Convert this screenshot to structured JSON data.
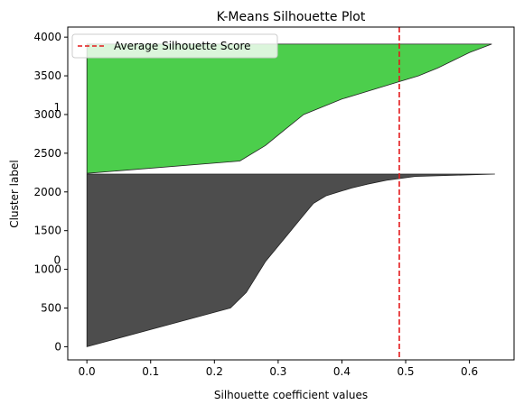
{
  "chart_data": {
    "type": "area",
    "title": "K-Means Silhouette Plot",
    "xlabel": "Silhouette coefficient values",
    "ylabel": "Cluster label",
    "xlim": [
      -0.03,
      0.67
    ],
    "ylim": [
      -170,
      4130
    ],
    "xticks": [
      0.0,
      0.1,
      0.2,
      0.3,
      0.4,
      0.5,
      0.6
    ],
    "xtick_labels": [
      "0.0",
      "0.1",
      "0.2",
      "0.3",
      "0.4",
      "0.5",
      "0.6"
    ],
    "yticks": [
      0,
      500,
      1000,
      1500,
      2000,
      2500,
      3000,
      3500,
      4000
    ],
    "ytick_labels": [
      "0",
      "500",
      "1000",
      "1500",
      "2000",
      "2500",
      "3000",
      "3500",
      "4000"
    ],
    "grid": false,
    "legend": {
      "position": "top-left",
      "entries": [
        "Average Silhouette Score"
      ]
    },
    "average_silhouette_score": 0.49,
    "average_color": "#e31a1c",
    "clusters": [
      {
        "label": "0",
        "label_y": 1115,
        "color": "#4d4d4d",
        "y_start": 0,
        "y_end": 2230,
        "profile": [
          [
            0,
            0.0
          ],
          [
            500,
            0.225
          ],
          [
            700,
            0.25
          ],
          [
            900,
            0.265
          ],
          [
            1100,
            0.28
          ],
          [
            1300,
            0.3
          ],
          [
            1500,
            0.32
          ],
          [
            1700,
            0.34
          ],
          [
            1850,
            0.355
          ],
          [
            1950,
            0.375
          ],
          [
            2000,
            0.395
          ],
          [
            2050,
            0.415
          ],
          [
            2100,
            0.44
          ],
          [
            2150,
            0.47
          ],
          [
            2200,
            0.515
          ],
          [
            2230,
            0.64
          ]
        ]
      },
      {
        "label": "1",
        "label_y": 3095,
        "color": "#4cce4c",
        "y_start": 2240,
        "y_end": 3910,
        "profile": [
          [
            2240,
            0.0
          ],
          [
            2400,
            0.24
          ],
          [
            2600,
            0.28
          ],
          [
            2800,
            0.31
          ],
          [
            3000,
            0.34
          ],
          [
            3100,
            0.37
          ],
          [
            3200,
            0.4
          ],
          [
            3300,
            0.44
          ],
          [
            3400,
            0.48
          ],
          [
            3500,
            0.52
          ],
          [
            3600,
            0.55
          ],
          [
            3700,
            0.575
          ],
          [
            3800,
            0.6
          ],
          [
            3910,
            0.635
          ]
        ]
      }
    ]
  }
}
